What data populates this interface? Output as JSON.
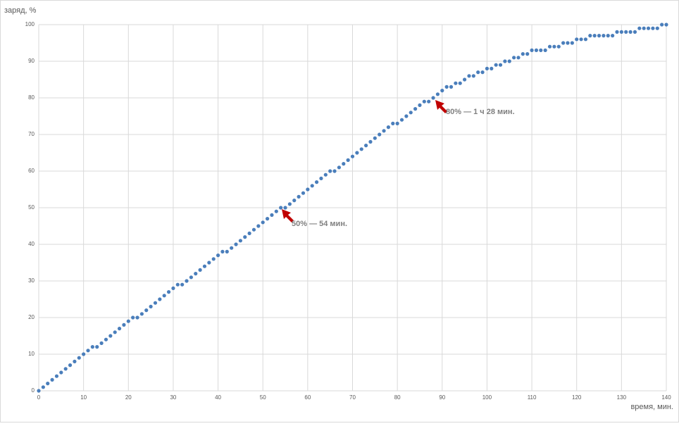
{
  "chart_data": {
    "type": "scatter",
    "y_label": "заряд, %",
    "x_label": "время, мин.",
    "x": [
      0,
      1,
      2,
      3,
      4,
      5,
      6,
      7,
      8,
      9,
      10,
      11,
      12,
      13,
      14,
      15,
      16,
      17,
      18,
      19,
      20,
      21,
      22,
      23,
      24,
      25,
      26,
      27,
      28,
      29,
      30,
      31,
      32,
      33,
      34,
      35,
      36,
      37,
      38,
      39,
      40,
      41,
      42,
      43,
      44,
      45,
      46,
      47,
      48,
      49,
      50,
      51,
      52,
      53,
      54,
      55,
      56,
      57,
      58,
      59,
      60,
      61,
      62,
      63,
      64,
      65,
      66,
      67,
      68,
      69,
      70,
      71,
      72,
      73,
      74,
      75,
      76,
      77,
      78,
      79,
      80,
      81,
      82,
      83,
      84,
      85,
      86,
      87,
      88,
      89,
      90,
      91,
      92,
      93,
      94,
      95,
      96,
      97,
      98,
      99,
      100,
      101,
      102,
      103,
      104,
      105,
      106,
      107,
      108,
      109,
      110,
      111,
      112,
      113,
      114,
      115,
      116,
      117,
      118,
      119,
      120,
      121,
      122,
      123,
      124,
      125,
      126,
      127,
      128,
      129,
      130,
      131,
      132,
      133,
      134,
      135,
      136,
      137,
      138,
      139,
      140
    ],
    "values": [
      0,
      1,
      2,
      3,
      4,
      5,
      6,
      7,
      8,
      9,
      10,
      11,
      12,
      12,
      13,
      14,
      15,
      16,
      17,
      18,
      19,
      20,
      20,
      21,
      22,
      23,
      24,
      25,
      26,
      27,
      28,
      29,
      29,
      30,
      31,
      32,
      33,
      34,
      35,
      36,
      37,
      38,
      38,
      39,
      40,
      41,
      42,
      43,
      44,
      45,
      46,
      47,
      48,
      49,
      50,
      50,
      51,
      52,
      53,
      54,
      55,
      56,
      57,
      58,
      59,
      60,
      60,
      61,
      62,
      63,
      64,
      65,
      66,
      67,
      68,
      69,
      70,
      71,
      72,
      73,
      73,
      74,
      75,
      76,
      77,
      78,
      79,
      79,
      80,
      81,
      82,
      83,
      83,
      84,
      84,
      85,
      86,
      86,
      87,
      87,
      88,
      88,
      89,
      89,
      90,
      90,
      91,
      91,
      92,
      92,
      93,
      93,
      93,
      93,
      94,
      94,
      94,
      95,
      95,
      95,
      96,
      96,
      96,
      97,
      97,
      97,
      97,
      97,
      97,
      98,
      98,
      98,
      98,
      98,
      99,
      99,
      99,
      99,
      99,
      100,
      100
    ],
    "color": "#4a7ebb",
    "xlim": [
      0,
      140
    ],
    "xticks": [
      0,
      10,
      20,
      30,
      40,
      50,
      60,
      70,
      80,
      90,
      100,
      110,
      120,
      130,
      140
    ],
    "ylim": [
      0,
      100
    ],
    "yticks": [
      0,
      10,
      20,
      30,
      40,
      50,
      60,
      70,
      80,
      90,
      100
    ],
    "grid": true,
    "annotations": [
      "50% — 54 мин.",
      "80% — 1 ч 28 мин."
    ]
  }
}
